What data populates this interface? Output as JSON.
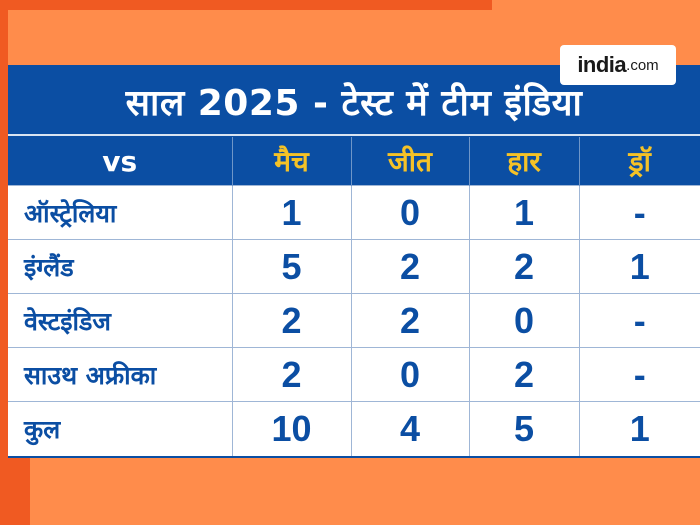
{
  "title": "साल 2025 - टेस्ट में टीम इंडिया",
  "logo": {
    "brand": "india",
    "tld": ".com"
  },
  "colors": {
    "background": "#ff8c4b",
    "accent": "#f05a22",
    "panel_blue": "#0b4ea3",
    "header_text": "#f5c227",
    "cell_text": "#0b4ea3"
  },
  "table": {
    "headers": [
      "vs",
      "मैच",
      "जीत",
      "हार",
      "ड्रॉ"
    ],
    "rows": [
      {
        "team": "ऑस्ट्रेलिया",
        "matches": "1",
        "won": "0",
        "lost": "1",
        "draw": "-"
      },
      {
        "team": "इंग्लैंड",
        "matches": "5",
        "won": "2",
        "lost": "2",
        "draw": "1"
      },
      {
        "team": "वेस्टइंडिज",
        "matches": "2",
        "won": "2",
        "lost": "0",
        "draw": "-"
      },
      {
        "team": "साउथ अफ्रीका",
        "matches": "2",
        "won": "0",
        "lost": "2",
        "draw": "-"
      },
      {
        "team": "कुल",
        "matches": "10",
        "won": "4",
        "lost": "5",
        "draw": "1"
      }
    ]
  },
  "chart_data": {
    "type": "table",
    "title": "साल 2025 - टेस्ट में टीम इंडिया",
    "columns": [
      "vs",
      "मैच",
      "जीत",
      "हार",
      "ड्रॉ"
    ],
    "rows": [
      [
        "ऑस्ट्रेलिया",
        1,
        0,
        1,
        null
      ],
      [
        "इंग्लैंड",
        5,
        2,
        2,
        1
      ],
      [
        "वेस्टइंडिज",
        2,
        2,
        0,
        null
      ],
      [
        "साउथ अफ्रीका",
        2,
        0,
        2,
        null
      ],
      [
        "कुल",
        10,
        4,
        5,
        1
      ]
    ]
  }
}
